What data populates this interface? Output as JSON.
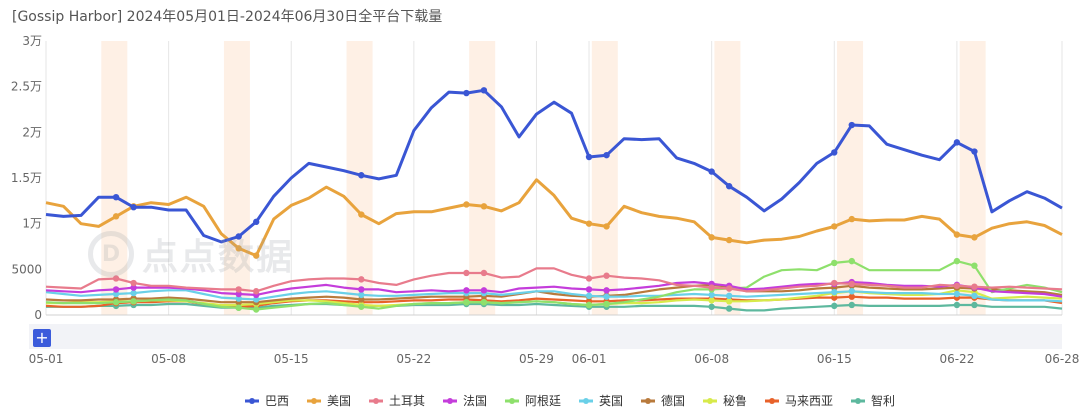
{
  "title": "[Gossip Harbor] 2024年05月01日-2024年06月30日全平台下载量",
  "watermark_text": "点点数据",
  "watermark_logo": "D",
  "zoom_button_label": "+",
  "chart_data": {
    "type": "line",
    "title": "[Gossip Harbor] 2024年05月01日-2024年06月30日全平台下载量",
    "ylim": [
      0,
      30000
    ],
    "y_ticks": [
      0,
      5000,
      10000,
      15000,
      20000,
      25000,
      30000
    ],
    "y_tick_labels": [
      "0",
      "5000",
      "1万",
      "1.5万",
      "2万",
      "2.5万",
      "3万"
    ],
    "x_tick_labels": [
      "05-01",
      "05-08",
      "05-15",
      "05-22",
      "05-29",
      "06-01",
      "06-08",
      "06-15",
      "06-22",
      "06-28"
    ],
    "x_tick_days": [
      0,
      7,
      14,
      21,
      28,
      31,
      38,
      45,
      52,
      58
    ],
    "weekend_bands_days": [
      3.5,
      10.5,
      17.5,
      24.5,
      31.5,
      38.5,
      45.5,
      52.5
    ],
    "legend_position": "bottom",
    "grid": "vertical",
    "series": [
      {
        "name": "巴西",
        "color": "#3a56d4",
        "marker_days": [
          4,
          5,
          11,
          12,
          18,
          24,
          25,
          31,
          32,
          38,
          39,
          45,
          46,
          52,
          53
        ],
        "values": [
          11000,
          10800,
          10900,
          12900,
          12900,
          11800,
          11800,
          11500,
          11500,
          8700,
          8000,
          8600,
          10200,
          13000,
          15000,
          16600,
          16200,
          15800,
          15300,
          14900,
          15300,
          20200,
          22700,
          24400,
          24300,
          24600,
          22800,
          19500,
          22000,
          23300,
          22100,
          17300,
          17500,
          19300,
          19200,
          19300,
          17200,
          16600,
          15700,
          14100,
          12900,
          11400,
          12700,
          14500,
          16600,
          17800,
          20800,
          20700,
          18700,
          18100,
          17500,
          17000,
          18900,
          17900,
          11300,
          12500,
          13500,
          12800,
          11700
        ]
      },
      {
        "name": "美国",
        "color": "#e8a33d",
        "marker_days": [
          4,
          5,
          11,
          12,
          18,
          24,
          25,
          31,
          32,
          38,
          39,
          45,
          46,
          52,
          53
        ],
        "values": [
          12300,
          11900,
          10000,
          9700,
          10800,
          11900,
          12300,
          12100,
          12900,
          11900,
          8900,
          7300,
          6500,
          10500,
          12000,
          12800,
          14000,
          13000,
          11000,
          10000,
          11100,
          11300,
          11300,
          11700,
          12100,
          11900,
          11400,
          12300,
          14800,
          13100,
          10600,
          10000,
          9700,
          11900,
          11200,
          10800,
          10600,
          10200,
          8500,
          8200,
          7900,
          8200,
          8300,
          8600,
          9200,
          9700,
          10500,
          10300,
          10400,
          10400,
          10800,
          10500,
          8800,
          8500,
          9500,
          10000,
          10200,
          9800,
          8800
        ]
      },
      {
        "name": "土耳其",
        "color": "#e87b8c",
        "marker_days": [
          4,
          5,
          11,
          12,
          18,
          24,
          25,
          31,
          32,
          38,
          39,
          45,
          46,
          52,
          53
        ],
        "values": [
          3100,
          3000,
          2900,
          3900,
          4000,
          3500,
          3200,
          3200,
          3000,
          2900,
          2800,
          2800,
          2600,
          3200,
          3700,
          3900,
          4000,
          4000,
          3900,
          3500,
          3300,
          3900,
          4300,
          4600,
          4600,
          4600,
          4100,
          4200,
          5100,
          5100,
          4400,
          4000,
          4300,
          4100,
          4000,
          3800,
          3300,
          3200,
          3000,
          2900,
          2600,
          2700,
          2900,
          3100,
          3200,
          3500,
          3400,
          3300,
          3200,
          3000,
          3000,
          3300,
          3200,
          3100,
          3000,
          3100,
          3000,
          2900,
          2800
        ]
      },
      {
        "name": "法国",
        "color": "#c43ddb",
        "marker_days": [
          4,
          5,
          11,
          12,
          18,
          24,
          25,
          31,
          32,
          38,
          39,
          45,
          46,
          52,
          53
        ],
        "values": [
          2700,
          2600,
          2500,
          2700,
          2800,
          3000,
          3000,
          3000,
          2900,
          2700,
          2400,
          2300,
          2200,
          2600,
          2900,
          3100,
          3300,
          3000,
          2800,
          2800,
          2500,
          2600,
          2700,
          2600,
          2700,
          2700,
          2500,
          2900,
          3000,
          3100,
          2900,
          2800,
          2700,
          2800,
          3000,
          3200,
          3500,
          3600,
          3400,
          3200,
          2800,
          2900,
          3100,
          3300,
          3400,
          3400,
          3600,
          3500,
          3300,
          3200,
          3200,
          3100,
          3300,
          3000,
          2600,
          2500,
          2400,
          2300,
          2000
        ]
      },
      {
        "name": "阿根廷",
        "color": "#8ee06c",
        "marker_days": [
          4,
          5,
          11,
          12,
          18,
          24,
          25,
          31,
          32,
          38,
          39,
          45,
          46,
          52,
          53
        ],
        "values": [
          1400,
          1300,
          1300,
          1300,
          1400,
          1500,
          1600,
          1700,
          1600,
          1200,
          900,
          800,
          600,
          800,
          1000,
          1200,
          1300,
          1100,
          900,
          700,
          1000,
          1200,
          1300,
          1300,
          1400,
          1400,
          1300,
          1400,
          1500,
          1400,
          1200,
          1100,
          1200,
          1400,
          1700,
          2000,
          2500,
          2800,
          2800,
          2900,
          3000,
          4200,
          4900,
          5000,
          4900,
          5700,
          5900,
          4900,
          4900,
          4900,
          4900,
          4900,
          5900,
          5400,
          2500,
          2900,
          3300,
          3000,
          2500
        ]
      },
      {
        "name": "英国",
        "color": "#6ad0e8",
        "marker_days": [
          4,
          5,
          11,
          12,
          18,
          24,
          25,
          31,
          32,
          38,
          39,
          45,
          46,
          52,
          53
        ],
        "values": [
          2500,
          2300,
          2100,
          2200,
          2300,
          2400,
          2600,
          2700,
          2700,
          2300,
          1900,
          1800,
          1700,
          2000,
          2300,
          2500,
          2600,
          2400,
          2200,
          2100,
          2100,
          2200,
          2300,
          2400,
          2400,
          2400,
          2200,
          2400,
          2600,
          2600,
          2300,
          2100,
          2000,
          2000,
          2100,
          2100,
          2200,
          2300,
          2200,
          2100,
          2000,
          2100,
          2200,
          2300,
          2400,
          2500,
          2600,
          2500,
          2400,
          2400,
          2400,
          2300,
          2300,
          2100,
          1700,
          1600,
          1600,
          1600,
          1500
        ]
      },
      {
        "name": "德国",
        "color": "#b87a3c",
        "marker_days": [
          4,
          5,
          11,
          12,
          18,
          24,
          25,
          31,
          32,
          38,
          39,
          45,
          46,
          52,
          53
        ],
        "values": [
          1700,
          1600,
          1600,
          1700,
          1700,
          1800,
          1800,
          1900,
          1800,
          1600,
          1400,
          1400,
          1400,
          1600,
          1800,
          1900,
          2000,
          1900,
          1700,
          1700,
          1800,
          1900,
          2000,
          2000,
          2000,
          2100,
          2000,
          2300,
          2600,
          2300,
          2100,
          2000,
          2100,
          2200,
          2500,
          2800,
          3000,
          3200,
          3300,
          3100,
          2600,
          2600,
          2600,
          2700,
          2900,
          3000,
          3200,
          3000,
          2900,
          2800,
          2800,
          2900,
          3000,
          2900,
          2800,
          2700,
          2600,
          2500,
          2200
        ]
      },
      {
        "name": "秘鲁",
        "color": "#d7ea4a",
        "marker_days": [
          4,
          5,
          11,
          12,
          18,
          24,
          25,
          31,
          32,
          38,
          39,
          45,
          46,
          52,
          53
        ],
        "values": [
          1300,
          1300,
          1400,
          1400,
          1500,
          1500,
          1600,
          1600,
          1500,
          1300,
          1100,
          1100,
          1200,
          1400,
          1600,
          1600,
          1500,
          1300,
          1100,
          1000,
          1100,
          1200,
          1300,
          1300,
          1400,
          1400,
          1300,
          1400,
          1500,
          1400,
          1200,
          1100,
          1200,
          1300,
          1300,
          1400,
          1600,
          1700,
          1600,
          1500,
          1500,
          1600,
          1700,
          1900,
          2100,
          2400,
          2600,
          2400,
          2300,
          2200,
          2200,
          2300,
          2700,
          2500,
          1800,
          1900,
          2000,
          1900,
          1800
        ]
      },
      {
        "name": "马来西亚",
        "color": "#e8622a",
        "marker_days": [
          4,
          5,
          11,
          12,
          18,
          24,
          25,
          31,
          32,
          38,
          39,
          45,
          46,
          52,
          53
        ],
        "values": [
          1000,
          900,
          900,
          1000,
          1300,
          1400,
          1400,
          1500,
          1500,
          1200,
          1000,
          900,
          1000,
          1300,
          1500,
          1600,
          1600,
          1500,
          1400,
          1400,
          1500,
          1600,
          1600,
          1700,
          1700,
          1600,
          1500,
          1600,
          1800,
          1700,
          1600,
          1500,
          1500,
          1600,
          1600,
          1700,
          1800,
          1800,
          1800,
          1700,
          1600,
          1600,
          1700,
          1800,
          1900,
          1900,
          2000,
          1900,
          1900,
          1800,
          1800,
          1800,
          1900,
          1900,
          1700,
          1600,
          1600,
          1600,
          1300
        ]
      },
      {
        "name": "智利",
        "color": "#5db89e",
        "marker_days": [
          4,
          5,
          11,
          12,
          18,
          24,
          25,
          31,
          32,
          38,
          39,
          45,
          46,
          52,
          53
        ],
        "values": [
          900,
          900,
          900,
          1000,
          1000,
          1100,
          1100,
          1200,
          1200,
          1000,
          800,
          800,
          800,
          1000,
          1100,
          1200,
          1200,
          1100,
          1000,
          1000,
          1000,
          1100,
          1100,
          1100,
          1200,
          1200,
          1100,
          1100,
          1200,
          1100,
          1000,
          900,
          900,
          900,
          1000,
          1000,
          1000,
          1000,
          900,
          700,
          500,
          500,
          700,
          800,
          900,
          1000,
          1100,
          1000,
          1000,
          1000,
          1000,
          1000,
          1100,
          1100,
          900,
          900,
          900,
          900,
          700
        ]
      }
    ]
  }
}
